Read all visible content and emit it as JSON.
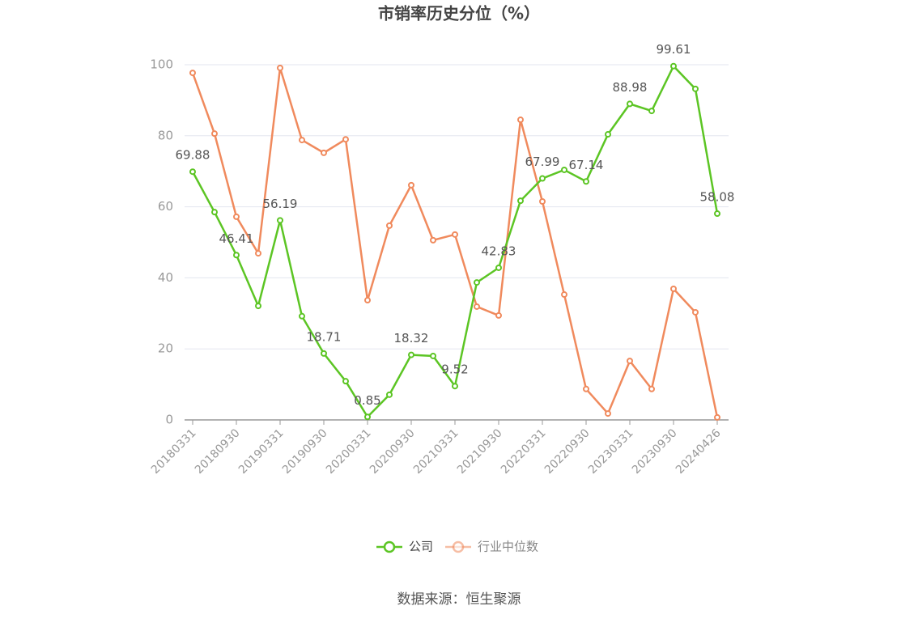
{
  "chart_data": {
    "type": "line",
    "title": "市销率历史分位（%）",
    "categories": [
      "20180331",
      null,
      "20180930",
      null,
      "20190331",
      null,
      "20190930",
      null,
      "20200331",
      null,
      "20200930",
      null,
      "20210331",
      null,
      "20210930",
      null,
      "20220331",
      null,
      "20220930",
      null,
      "20230331",
      null,
      "20230930",
      null,
      "20240426"
    ],
    "series": [
      {
        "name": "公司",
        "color": "#5cc524",
        "values": [
          69.88,
          58.5,
          46.41,
          32.1,
          56.19,
          29.2,
          18.71,
          10.9,
          0.85,
          7.1,
          18.32,
          18.0,
          9.52,
          38.7,
          42.83,
          61.7,
          67.99,
          70.4,
          67.14,
          80.4,
          88.98,
          87.0,
          99.61,
          93.2,
          58.08
        ],
        "value_labels": [
          "69.88",
          null,
          "46.41",
          null,
          "56.19",
          null,
          "18.71",
          null,
          "0.85",
          null,
          "18.32",
          null,
          "9.52",
          null,
          "42.83",
          null,
          "67.99",
          null,
          "67.14",
          null,
          "88.98",
          null,
          "99.61",
          null,
          "58.08"
        ]
      },
      {
        "name": "行业中位数",
        "color": "#f08a5d",
        "values": [
          97.7,
          80.6,
          57.2,
          46.9,
          99.1,
          78.8,
          75.2,
          79.0,
          33.7,
          54.7,
          66.1,
          50.6,
          52.2,
          31.9,
          29.4,
          84.5,
          61.5,
          35.3,
          8.7,
          1.8,
          16.6,
          8.7,
          36.9,
          30.3,
          0.7
        ]
      }
    ],
    "ylim": [
      0,
      100
    ],
    "yticks": [
      0,
      20,
      40,
      60,
      80,
      100
    ],
    "grid": true,
    "legend": "bottom",
    "source": "数据来源：恒生聚源"
  }
}
